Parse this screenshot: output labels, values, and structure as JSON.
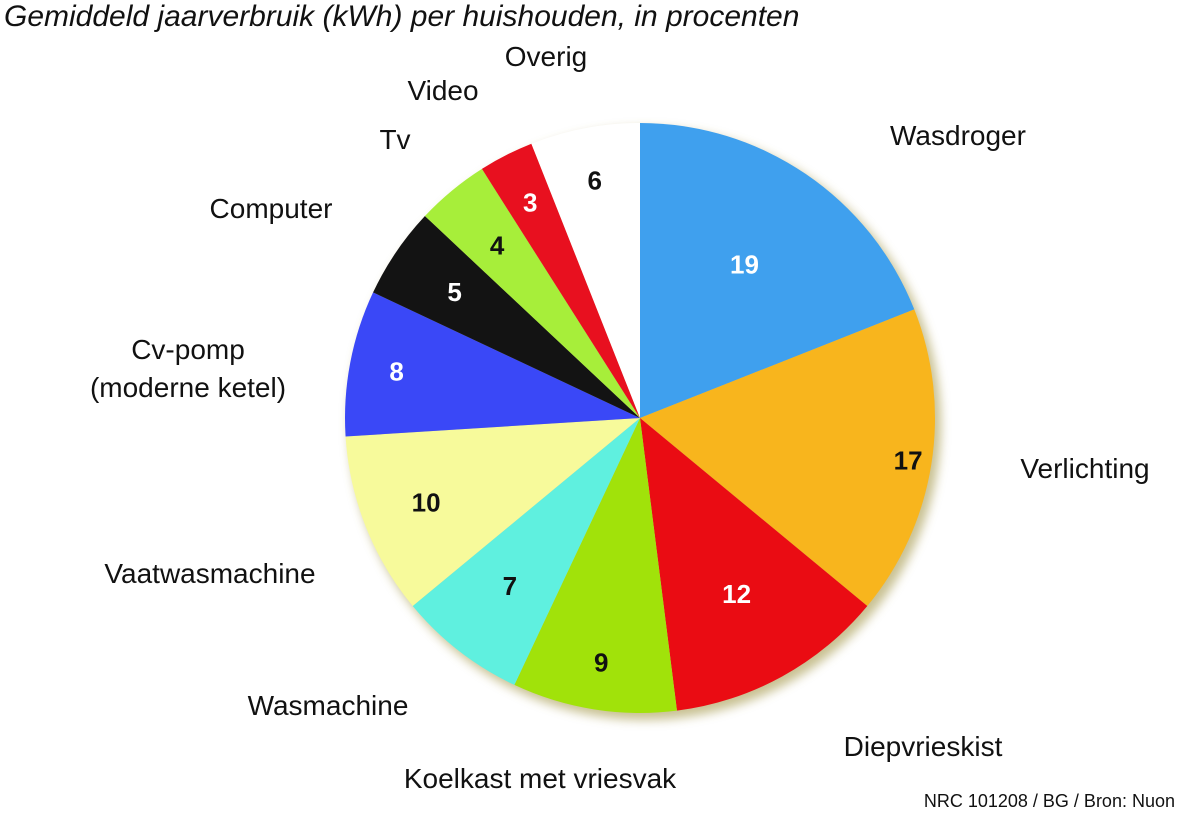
{
  "chart_data": {
    "type": "pie",
    "title": "Gemiddeld jaarverbruik (kWh) per huishouden, in procenten",
    "slices": [
      {
        "label": "Wasdroger",
        "value": 19,
        "color": "#3fa0ee",
        "label_color": "#ffffff"
      },
      {
        "label": "Verlichting",
        "value": 17,
        "color": "#f8b51d",
        "label_color": "#111111"
      },
      {
        "label": "Diepvrieskist",
        "value": 12,
        "color": "#ea0c13",
        "label_color": "#ffffff"
      },
      {
        "label": "Koelkast met vriesvak",
        "value": 9,
        "color": "#a1e20a",
        "label_color": "#111111"
      },
      {
        "label": "Wasmachine",
        "value": 7,
        "color": "#5ff0df",
        "label_color": "#111111"
      },
      {
        "label": "Vaatwasmachine",
        "value": 10,
        "color": "#f7fa9b",
        "label_color": "#111111"
      },
      {
        "label": [
          "Cv-pomp",
          "(moderne ketel)"
        ],
        "value": 8,
        "color": "#3a48f7",
        "label_color": "#ffffff"
      },
      {
        "label": "Computer",
        "value": 5,
        "color": "#131313",
        "label_color": "#ffffff"
      },
      {
        "label": "Tv",
        "value": 4,
        "color": "#a7ee3a",
        "label_color": "#111111"
      },
      {
        "label": "Video",
        "value": 3,
        "color": "#e8101f",
        "label_color": "#ffffff"
      },
      {
        "label": "Overig",
        "value": 6,
        "color": "#ffffff",
        "label_color": "#111111"
      }
    ],
    "start": "12 o'clock",
    "direction": "clockwise",
    "legend": "none"
  },
  "source": "NRC 101208 / BG / Bron: Nuon"
}
